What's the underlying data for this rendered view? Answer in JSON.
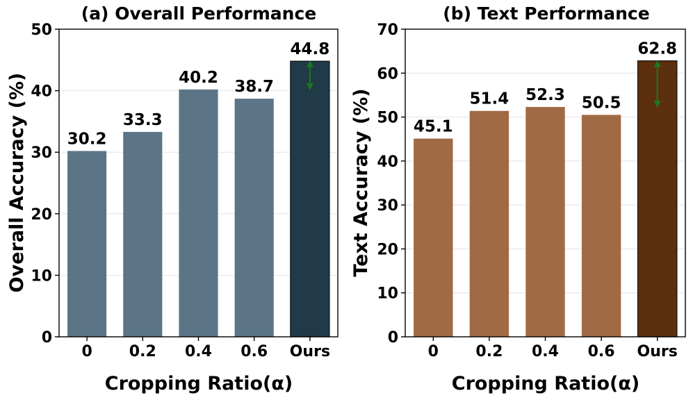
{
  "chart_data": [
    {
      "type": "bar",
      "title": "(a) Overall Performance",
      "xlabel": "Cropping Ratio(α)",
      "ylabel": "Overall Accuracy (%)",
      "categories": [
        "0",
        "0.2",
        "0.4",
        "0.6",
        "Ours"
      ],
      "values": [
        30.2,
        33.3,
        40.2,
        38.7,
        44.8
      ],
      "value_labels": [
        "30.2",
        "33.3",
        "40.2",
        "38.7",
        "44.8"
      ],
      "ylim": [
        0,
        50
      ],
      "yticks": [
        0,
        10,
        20,
        30,
        40,
        50
      ],
      "ytick_labels": [
        "0",
        "10",
        "20",
        "30",
        "40",
        "50"
      ],
      "grid": true,
      "bar_color": "#5b7587",
      "highlight_color": "#213a47",
      "highlight_index": 4,
      "arrow_color": "#1a7a1a",
      "arrow_range": [
        40.2,
        44.8
      ]
    },
    {
      "type": "bar",
      "title": "(b) Text Performance",
      "xlabel": "Cropping Ratio(α)",
      "ylabel": "Text Accuracy (%)",
      "categories": [
        "0",
        "0.2",
        "0.4",
        "0.6",
        "Ours"
      ],
      "values": [
        45.1,
        51.4,
        52.3,
        50.5,
        62.8
      ],
      "value_labels": [
        "45.1",
        "51.4",
        "52.3",
        "50.5",
        "62.8"
      ],
      "ylim": [
        0,
        70
      ],
      "yticks": [
        0,
        10,
        20,
        30,
        40,
        50,
        60,
        70
      ],
      "ytick_labels": [
        "0",
        "10",
        "20",
        "30",
        "40",
        "50",
        "60",
        "70"
      ],
      "grid": true,
      "bar_color": "#a06a44",
      "highlight_color": "#5c300e",
      "highlight_index": 4,
      "arrow_color": "#1a7a1a",
      "arrow_range": [
        52.3,
        62.8
      ]
    }
  ]
}
